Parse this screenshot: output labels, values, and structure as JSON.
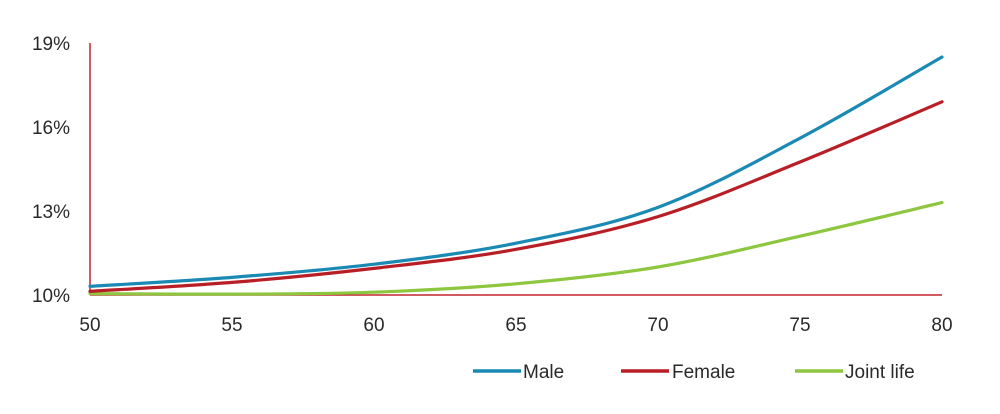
{
  "chart_data": {
    "type": "line",
    "title": "",
    "xlabel": "",
    "ylabel": "",
    "xlim": [
      50,
      80
    ],
    "ylim": [
      0.1,
      0.19
    ],
    "x_ticks": [
      50,
      55,
      60,
      65,
      70,
      75,
      80
    ],
    "x_tick_labels": [
      "50",
      "55",
      "60",
      "65",
      "70",
      "75",
      "80"
    ],
    "y_ticks": [
      0.1,
      0.13,
      0.16,
      0.19
    ],
    "y_tick_labels": [
      "10%",
      "13%",
      "16%",
      "19%"
    ],
    "grid": false,
    "legend_position": "bottom-right",
    "axis_color": "#c0262d",
    "x": [
      50,
      55,
      60,
      65,
      70,
      75,
      80
    ],
    "series": [
      {
        "name": "Male",
        "color": "#1a8ab4",
        "values": [
          0.1031,
          0.1063,
          0.111,
          0.1185,
          0.1313,
          0.156,
          0.185
        ]
      },
      {
        "name": "Female",
        "color": "#b81e26",
        "values": [
          0.1013,
          0.1045,
          0.1095,
          0.1163,
          0.128,
          0.1475,
          0.169
        ]
      },
      {
        "name": "Joint life",
        "color": "#8dc63f",
        "values": [
          0.1005,
          0.1003,
          0.101,
          0.104,
          0.11,
          0.121,
          0.133
        ]
      }
    ]
  }
}
